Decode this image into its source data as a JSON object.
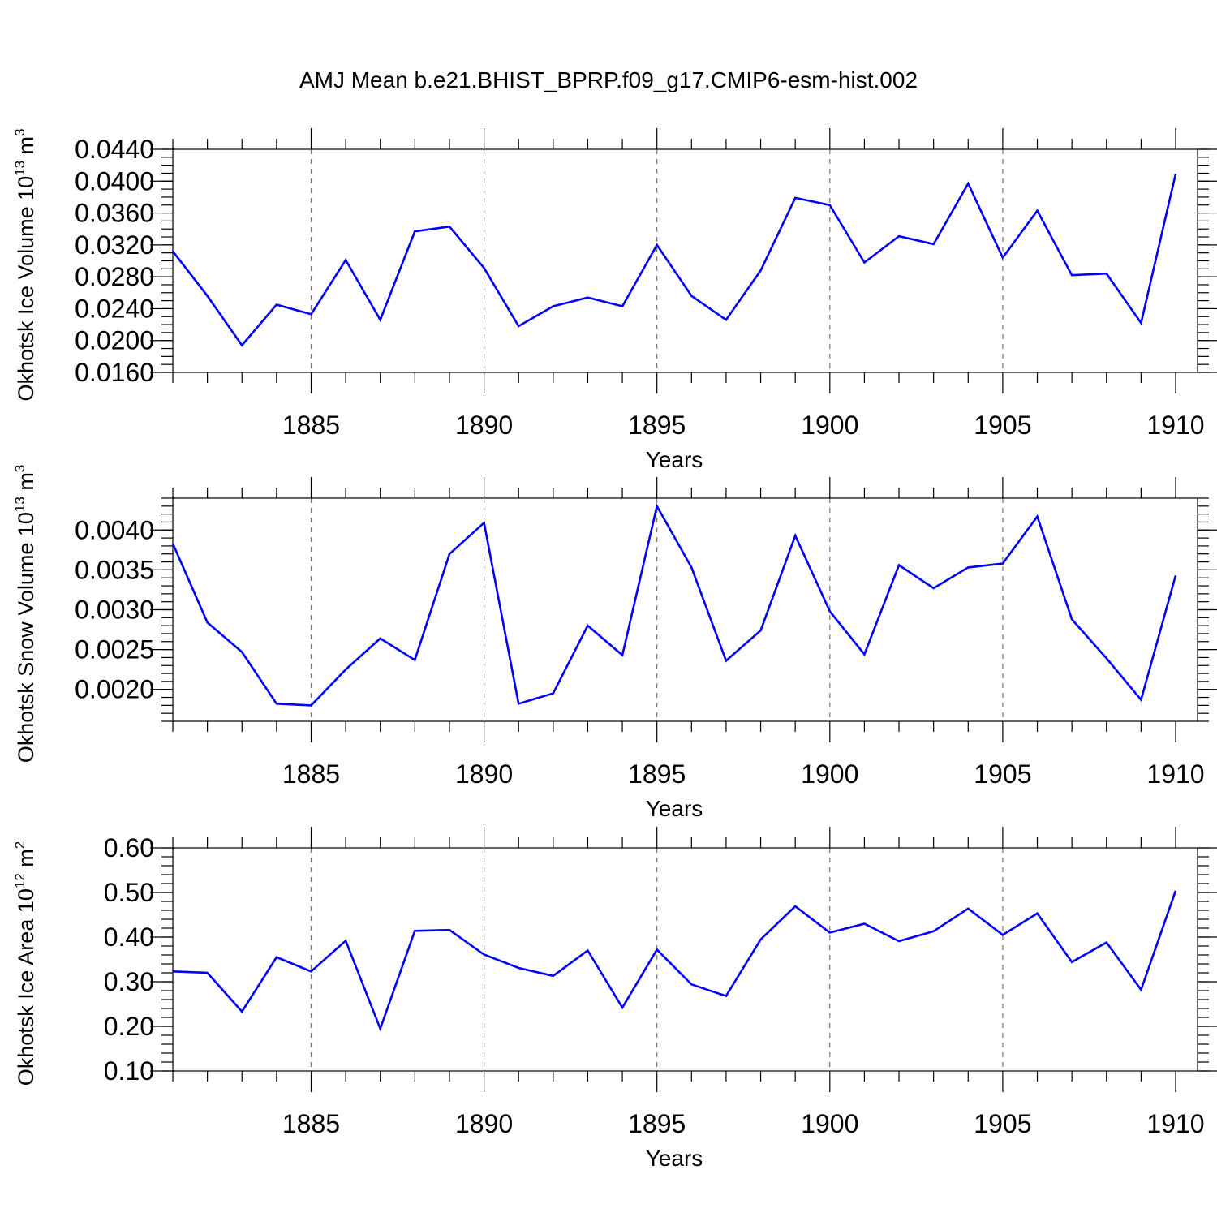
{
  "title": "AMJ Mean b.e21.BHIST_BPRP.f09_g17.CMIP6-esm-hist.002",
  "colors": {
    "series": "#0000ff",
    "axis": "#000000",
    "grid": "#777777"
  },
  "chart_data": [
    {
      "type": "line",
      "ylabel": {
        "text": "Okhotsk Ice Volume 10",
        "exponent": "13",
        "unit": " m",
        "unit_exponent": "3"
      },
      "xlabel": "Years",
      "xlim": [
        1881,
        1910
      ],
      "ylim": [
        0.016,
        0.044
      ],
      "yticks": [
        0.016,
        0.02,
        0.024,
        0.028,
        0.032,
        0.036,
        0.04,
        0.044
      ],
      "ytick_labels": [
        "0.0160",
        "0.0200",
        "0.0240",
        "0.0280",
        "0.0320",
        "0.0360",
        "0.0400",
        "0.0440"
      ],
      "y_minor_step": 0.001,
      "xticks": [
        1885,
        1890,
        1895,
        1900,
        1905,
        1910
      ],
      "xtick_labels": [
        "1885",
        "1890",
        "1895",
        "1900",
        "1905",
        "1910"
      ],
      "grid": "vertical-dashed",
      "x": [
        1881,
        1882,
        1883,
        1884,
        1885,
        1886,
        1887,
        1888,
        1889,
        1890,
        1891,
        1892,
        1893,
        1894,
        1895,
        1896,
        1897,
        1898,
        1899,
        1900,
        1901,
        1902,
        1903,
        1904,
        1905,
        1906,
        1907,
        1908,
        1909,
        1910
      ],
      "series": [
        {
          "name": "ice_volume",
          "values": [
            0.0312,
            0.0256,
            0.0194,
            0.0245,
            0.0233,
            0.0301,
            0.0226,
            0.0337,
            0.0343,
            0.0291,
            0.0218,
            0.0243,
            0.0254,
            0.0243,
            0.032,
            0.0256,
            0.0226,
            0.0288,
            0.0379,
            0.037,
            0.0298,
            0.0331,
            0.0321,
            0.0397,
            0.0304,
            0.0363,
            0.0282,
            0.0284,
            0.0222,
            0.0409
          ]
        }
      ]
    },
    {
      "type": "line",
      "ylabel": {
        "text": "Okhotsk Snow Volume 10",
        "exponent": "13",
        "unit": " m",
        "unit_exponent": "3"
      },
      "xlabel": "Years",
      "xlim": [
        1881,
        1910
      ],
      "ylim": [
        0.0016,
        0.0044
      ],
      "yticks": [
        0.002,
        0.0025,
        0.003,
        0.0035,
        0.004
      ],
      "ytick_labels": [
        "0.0020",
        "0.0025",
        "0.0030",
        "0.0035",
        "0.0040"
      ],
      "y_minor_step": 0.0001,
      "xticks": [
        1885,
        1890,
        1895,
        1900,
        1905,
        1910
      ],
      "xtick_labels": [
        "1885",
        "1890",
        "1895",
        "1900",
        "1905",
        "1910"
      ],
      "grid": "vertical-dashed",
      "x": [
        1881,
        1882,
        1883,
        1884,
        1885,
        1886,
        1887,
        1888,
        1889,
        1890,
        1891,
        1892,
        1893,
        1894,
        1895,
        1896,
        1897,
        1898,
        1899,
        1900,
        1901,
        1902,
        1903,
        1904,
        1905,
        1906,
        1907,
        1908,
        1909,
        1910
      ],
      "series": [
        {
          "name": "snow_volume",
          "values": [
            0.00383,
            0.00284,
            0.00247,
            0.00182,
            0.0018,
            0.00225,
            0.00264,
            0.00237,
            0.0037,
            0.00409,
            0.00182,
            0.00195,
            0.0028,
            0.00243,
            0.0043,
            0.00353,
            0.00236,
            0.00274,
            0.00393,
            0.00298,
            0.00244,
            0.00356,
            0.00327,
            0.00353,
            0.00358,
            0.00417,
            0.00288,
            0.00239,
            0.00187,
            0.00343
          ]
        }
      ]
    },
    {
      "type": "line",
      "ylabel": {
        "text": "Okhotsk Ice Area 10",
        "exponent": "12",
        "unit": " m",
        "unit_exponent": "2"
      },
      "xlabel": "Years",
      "xlim": [
        1881,
        1910
      ],
      "ylim": [
        0.1,
        0.6
      ],
      "yticks": [
        0.1,
        0.2,
        0.3,
        0.4,
        0.5,
        0.6
      ],
      "ytick_labels": [
        "0.10",
        "0.20",
        "0.30",
        "0.40",
        "0.50",
        "0.60"
      ],
      "y_minor_step": 0.02,
      "xticks": [
        1885,
        1890,
        1895,
        1900,
        1905,
        1910
      ],
      "xtick_labels": [
        "1885",
        "1890",
        "1895",
        "1900",
        "1905",
        "1910"
      ],
      "grid": "vertical-dashed",
      "x": [
        1881,
        1882,
        1883,
        1884,
        1885,
        1886,
        1887,
        1888,
        1889,
        1890,
        1891,
        1892,
        1893,
        1894,
        1895,
        1896,
        1897,
        1898,
        1899,
        1900,
        1901,
        1902,
        1903,
        1904,
        1905,
        1906,
        1907,
        1908,
        1909,
        1910
      ],
      "series": [
        {
          "name": "ice_area",
          "values": [
            0.323,
            0.32,
            0.233,
            0.355,
            0.323,
            0.392,
            0.195,
            0.414,
            0.416,
            0.361,
            0.331,
            0.313,
            0.37,
            0.242,
            0.372,
            0.294,
            0.268,
            0.395,
            0.469,
            0.41,
            0.43,
            0.391,
            0.413,
            0.464,
            0.405,
            0.453,
            0.344,
            0.388,
            0.282,
            0.504
          ]
        }
      ]
    }
  ]
}
